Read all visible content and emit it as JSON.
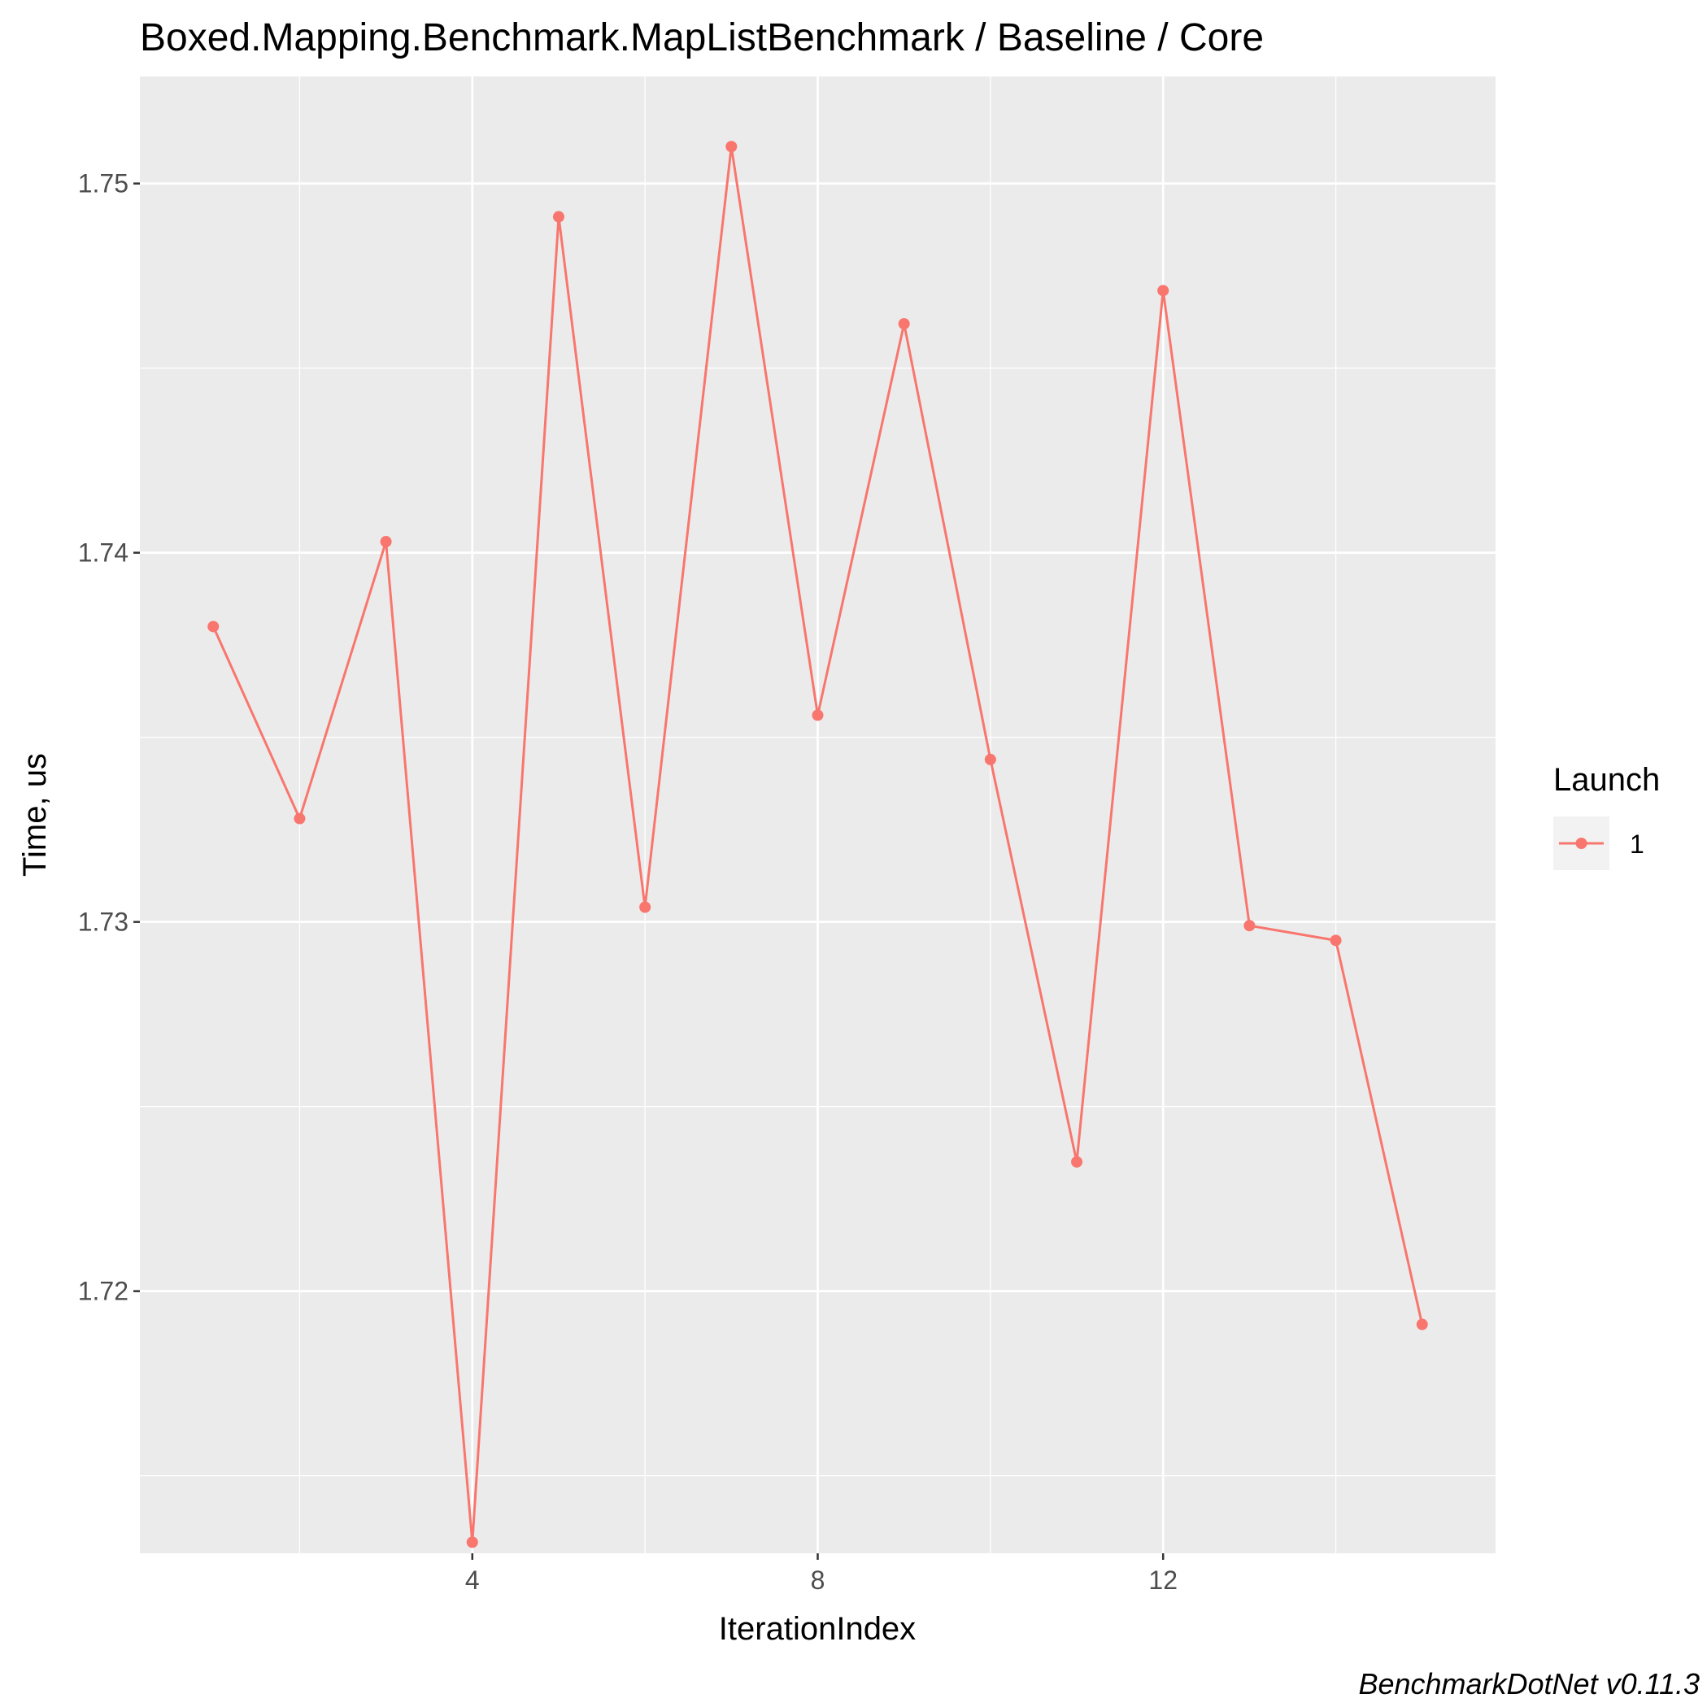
{
  "chart_data": {
    "type": "line",
    "title": "Boxed.Mapping.Benchmark.MapListBenchmark / Baseline / Core",
    "xlabel": "IterationIndex",
    "ylabel": "Time, us",
    "caption": "BenchmarkDotNet v0.11.3",
    "xlim": [
      0.15,
      15.85
    ],
    "ylim": [
      1.7129,
      1.7529
    ],
    "x_ticks": [
      4,
      8,
      12
    ],
    "x_tick_labels": [
      "4",
      "8",
      "12"
    ],
    "x_minor_ticks": [
      2,
      6,
      10,
      14
    ],
    "y_ticks": [
      1.72,
      1.73,
      1.74,
      1.75
    ],
    "y_tick_labels": [
      "1.72",
      "1.73",
      "1.74",
      "1.75"
    ],
    "y_minor_ticks": [
      1.715,
      1.725,
      1.735,
      1.745
    ],
    "grid": true,
    "legend": {
      "title": "Launch",
      "position": "right"
    },
    "series": [
      {
        "name": "1",
        "color": "#F8766D",
        "x": [
          1,
          2,
          3,
          4,
          5,
          6,
          7,
          8,
          9,
          10,
          11,
          12,
          13,
          14,
          15
        ],
        "y": [
          1.738,
          1.7328,
          1.7403,
          1.7132,
          1.7491,
          1.7304,
          1.751,
          1.7356,
          1.7462,
          1.7344,
          1.7235,
          1.7471,
          1.7299,
          1.7295,
          1.7191
        ]
      }
    ]
  },
  "colors": {
    "panel_background": "#EBEBEB",
    "grid_line": "#FFFFFF",
    "series": "#F8766D",
    "legend_key_background": "#F2F2F2"
  }
}
